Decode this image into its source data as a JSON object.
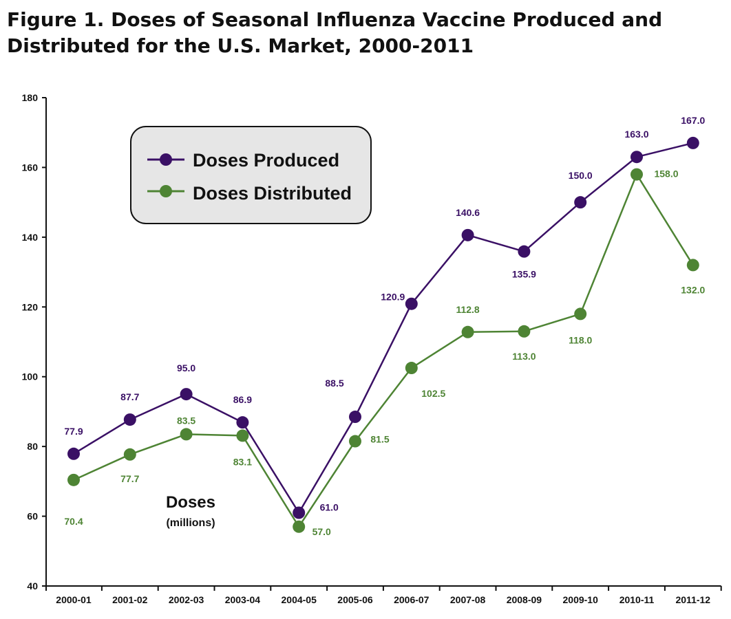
{
  "chart_data": {
    "type": "line",
    "title": "Figure 1. Doses of Seasonal Influenza Vaccine Produced and Distributed for the U.S. Market, 2000-2011",
    "xlabel": "",
    "ylabel": "Doses",
    "ylabel_unit": "(millions)",
    "categories": [
      "2000-01",
      "2001-02",
      "2002-03",
      "2003-04",
      "2004-05",
      "2005-06",
      "2006-07",
      "2007-08",
      "2008-09",
      "2009-10",
      "2010-11",
      "2011-12"
    ],
    "ylim": [
      40,
      180
    ],
    "yticks": [
      40,
      60,
      80,
      100,
      120,
      140,
      160,
      180
    ],
    "grid": false,
    "legend_position": "top-left",
    "series": [
      {
        "name": "Doses Produced",
        "color": "#3a1065",
        "values": [
          77.9,
          87.7,
          95.0,
          86.9,
          61.0,
          88.5,
          120.9,
          140.6,
          135.9,
          150.0,
          163.0,
          167.0
        ],
        "labels": [
          "77.9",
          "87.7",
          "95.0",
          "86.9",
          "61.0",
          "88.5",
          "120.9",
          "140.6",
          "135.9",
          "150.0",
          "163.0",
          "167.0"
        ]
      },
      {
        "name": "Doses Distributed",
        "color": "#4e8434",
        "values": [
          70.4,
          77.7,
          83.5,
          83.1,
          57.0,
          81.5,
          102.5,
          112.8,
          113.0,
          118.0,
          158.0,
          132.0
        ],
        "labels": [
          "70.4",
          "77.7",
          "83.5",
          "83.1",
          "57.0",
          "81.5",
          "102.5",
          "112.8",
          "113.0",
          "118.0",
          "158.0",
          "132.0"
        ]
      }
    ]
  }
}
